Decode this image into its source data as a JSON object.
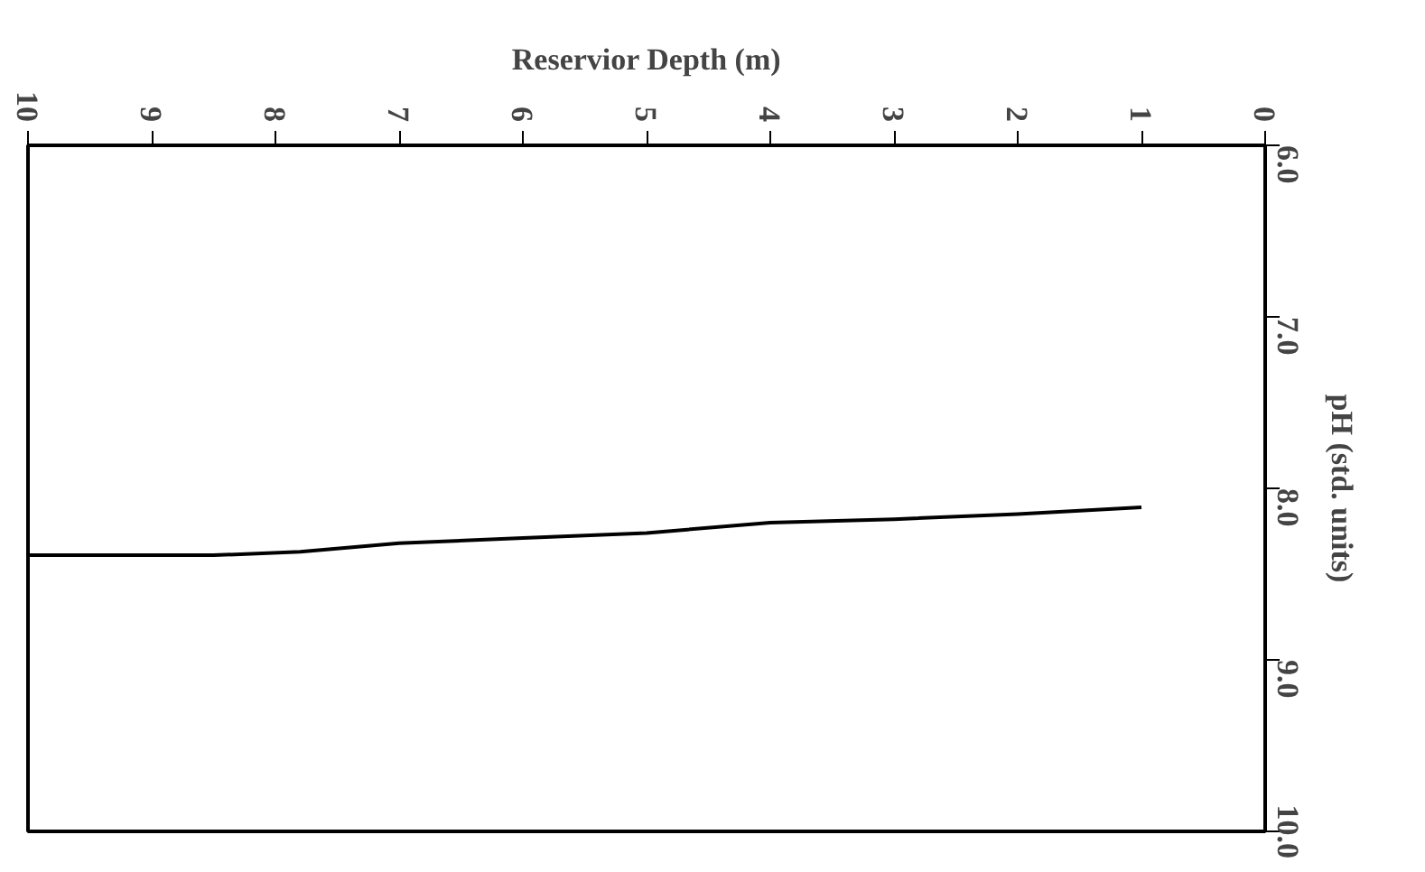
{
  "chart_data": {
    "type": "line",
    "xlabel": "Reservior Depth (m)",
    "ylabel": "pH (std. units)",
    "x": [
      1,
      2,
      3,
      4,
      5,
      6,
      7,
      7.8,
      8.5,
      10
    ],
    "series": [
      {
        "color": "#000000",
        "values": [
          8.11,
          8.15,
          8.18,
          8.2,
          8.26,
          8.29,
          8.32,
          8.37,
          8.39,
          8.39
        ]
      }
    ],
    "xlim": [
      10,
      0
    ],
    "xticks": [
      0,
      1,
      2,
      3,
      4,
      5,
      6,
      7,
      8,
      9,
      10
    ],
    "ylim": [
      10,
      6
    ],
    "yticks": [
      {
        "value": 6,
        "label": "6.0"
      },
      {
        "value": 7,
        "label": "7.0"
      },
      {
        "value": 8,
        "label": "8.0"
      },
      {
        "value": 9,
        "label": "9.0"
      },
      {
        "value": 10,
        "label": "10.0"
      }
    ],
    "grid": false,
    "marker": "none",
    "line_style": "solid"
  }
}
